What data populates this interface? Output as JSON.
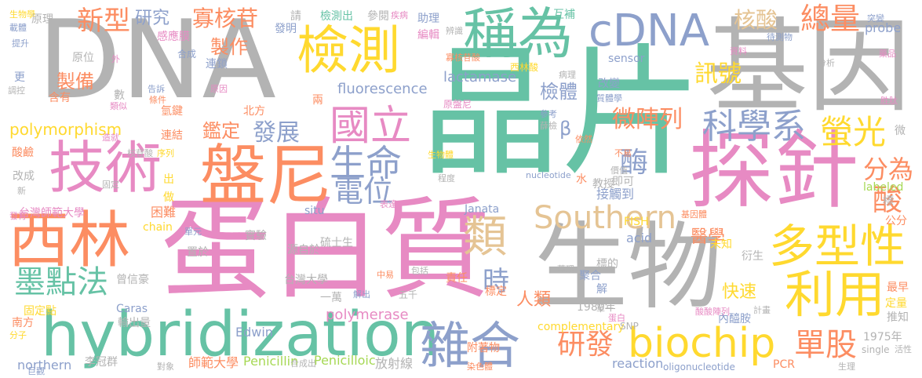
{
  "palette": {
    "green": "#66c2a5",
    "orange": "#fc8d62",
    "blue": "#8da0cb",
    "pink": "#e78ac3",
    "lime": "#a6d854",
    "yellow": "#ffd92f",
    "tan": "#e5c494",
    "gray": "#b3b3b3"
  },
  "words": [
    {
      "text": "DNA",
      "color": "#b3b3b3"
    },
    {
      "text": "晶片",
      "color": "#66c2a5"
    },
    {
      "text": "基因",
      "color": "#b3b3b3"
    },
    {
      "text": "蛋白質",
      "color": "#e78ac3"
    },
    {
      "text": "生物",
      "color": "#b3b3b3"
    },
    {
      "text": "hybridization",
      "color": "#66c2a5"
    },
    {
      "text": "探針",
      "color": "#e78ac3"
    },
    {
      "text": "技術",
      "color": "#e78ac3"
    },
    {
      "text": "盤尼",
      "color": "#fc8d62"
    },
    {
      "text": "西林",
      "color": "#fc8d62"
    },
    {
      "text": "檢測",
      "color": "#ffd92f"
    },
    {
      "text": "稱為",
      "color": "#66c2a5"
    },
    {
      "text": "cDNA",
      "color": "#8da0cb"
    },
    {
      "text": "多型性",
      "color": "#ffd92f"
    },
    {
      "text": "利用",
      "color": "#ffd92f"
    },
    {
      "text": "雜合",
      "color": "#8da0cb"
    },
    {
      "text": "biochip",
      "color": "#ffd92f"
    },
    {
      "text": "Southern",
      "color": "#e5c494"
    },
    {
      "text": "國立",
      "color": "#e78ac3"
    },
    {
      "text": "生命",
      "color": "#8da0cb"
    },
    {
      "text": "科學系",
      "color": "#8da0cb"
    },
    {
      "text": "墨點法",
      "color": "#66c2a5"
    },
    {
      "text": "類",
      "color": "#e5c494"
    },
    {
      "text": "電位",
      "color": "#8da0cb"
    },
    {
      "text": "寡核苷",
      "color": "#fc8d62"
    },
    {
      "text": "總量",
      "color": "#fc8d62"
    },
    {
      "text": "螢光",
      "color": "#ffd92f"
    },
    {
      "text": "研發",
      "color": "#fc8d62"
    },
    {
      "text": "單股",
      "color": "#fc8d62"
    },
    {
      "text": "新型",
      "color": "#fc8d62"
    },
    {
      "text": "訊號",
      "color": "#ffd92f"
    },
    {
      "text": "發展",
      "color": "#8da0cb"
    },
    {
      "text": "微陣列",
      "color": "#fc8d62"
    },
    {
      "text": "酶",
      "color": "#8da0cb"
    },
    {
      "text": "核酸",
      "color": "#e5c494"
    },
    {
      "text": "分為",
      "color": "#fc8d62"
    },
    {
      "text": "酸",
      "color": "#fc8d62"
    },
    {
      "text": "時",
      "color": "#8da0cb"
    },
    {
      "text": "製作",
      "color": "#fc8d62"
    },
    {
      "text": "製備",
      "color": "#fc8d62"
    },
    {
      "text": "鑑定",
      "color": "#fc8d62"
    },
    {
      "text": "檢體",
      "color": "#8da0cb"
    },
    {
      "text": "研究",
      "color": "#8da0cb"
    },
    {
      "text": "polymorphism",
      "color": "#ffd92f"
    },
    {
      "text": "醫學",
      "color": "#fc8d62"
    },
    {
      "text": "人類",
      "color": "#fc8d62"
    },
    {
      "text": "快速",
      "color": "#ffd92f"
    },
    {
      "text": "接觸到",
      "color": "#8da0cb"
    },
    {
      "text": "lactamase",
      "color": "#8da0cb"
    },
    {
      "text": "fluorescence",
      "color": "#8da0cb"
    },
    {
      "text": "polymerase",
      "color": "#e78ac3"
    },
    {
      "text": "Penicillin",
      "color": "#a6d854"
    },
    {
      "text": "Penicilloic",
      "color": "#a6d854"
    },
    {
      "text": "Edwin",
      "color": "#8da0cb"
    },
    {
      "text": "northern",
      "color": "#8da0cb"
    },
    {
      "text": "reaction",
      "color": "#8da0cb"
    },
    {
      "text": "complementary",
      "color": "#ffd92f"
    },
    {
      "text": "oligonucleotide",
      "color": "#8da0cb"
    },
    {
      "text": "acid",
      "color": "#8da0cb"
    },
    {
      "text": "labeled",
      "color": "#a6d854"
    },
    {
      "text": "sensor",
      "color": "#8da0cb"
    },
    {
      "text": "probe",
      "color": "#8da0cb"
    },
    {
      "text": "Janata",
      "color": "#8da0cb"
    },
    {
      "text": "FISH",
      "color": "#ffd92f"
    },
    {
      "text": "Caras",
      "color": "#8da0cb"
    },
    {
      "text": "chain",
      "color": "#ffd92f"
    },
    {
      "text": "situ",
      "color": "#8da0cb"
    },
    {
      "text": "SNP",
      "color": "#b3b3b3"
    },
    {
      "text": "PCR",
      "color": "#fc8d62"
    },
    {
      "text": "single",
      "color": "#b3b3b3"
    },
    {
      "text": "nucleotide",
      "color": "#8da0cb"
    },
    {
      "text": "1980年",
      "color": "#b3b3b3"
    },
    {
      "text": "1975年",
      "color": "#b3b3b3"
    },
    {
      "text": "台灣師範大學",
      "color": "#e78ac3"
    },
    {
      "text": "台灣大學",
      "color": "#b3b3b3"
    },
    {
      "text": "師範大學",
      "color": "#fc8d62"
    },
    {
      "text": "李冠群",
      "color": "#b3b3b3"
    },
    {
      "text": "曾信豪",
      "color": "#b3b3b3"
    },
    {
      "text": "固定點",
      "color": "#ffd92f"
    },
    {
      "text": "輸出量",
      "color": "#b3b3b3"
    },
    {
      "text": "南方",
      "color": "#fc8d62"
    },
    {
      "text": "北方",
      "color": "#fc8d62"
    },
    {
      "text": "困難",
      "color": "#fc8d62"
    },
    {
      "text": "放射線",
      "color": "#b3b3b3"
    },
    {
      "text": "一萬",
      "color": "#b3b3b3"
    },
    {
      "text": "源自於",
      "color": "#b3b3b3"
    },
    {
      "text": "硫士生",
      "color": "#b3b3b3"
    },
    {
      "text": "實驗",
      "color": "#b3b3b3"
    },
    {
      "text": "置於",
      "color": "#b3b3b3"
    },
    {
      "text": "內醯胺",
      "color": "#8da0cb"
    },
    {
      "text": "定量",
      "color": "#ffd92f"
    },
    {
      "text": "推知",
      "color": "#b3b3b3"
    },
    {
      "text": "最早",
      "color": "#fc8d62"
    },
    {
      "text": "衍生",
      "color": "#b3b3b3"
    },
    {
      "text": "未知",
      "color": "#ffd92f"
    },
    {
      "text": "標的",
      "color": "#b3b3b3"
    },
    {
      "text": "聚合",
      "color": "#8da0cb"
    },
    {
      "text": "責任",
      "color": "#fc8d62"
    },
    {
      "text": "附著物",
      "color": "#fc8d62"
    },
    {
      "text": "標定",
      "color": "#fc8d62"
    },
    {
      "text": "五千",
      "color": "#b3b3b3"
    },
    {
      "text": "教授",
      "color": "#b3b3b3"
    },
    {
      "text": "即可",
      "color": "#b3b3b3"
    },
    {
      "text": "改成",
      "color": "#b3b3b3"
    },
    {
      "text": "酸鹼",
      "color": "#fc8d62"
    },
    {
      "text": "連結",
      "color": "#fc8d62"
    },
    {
      "text": "氫鍵",
      "color": "#fc8d62"
    },
    {
      "text": "感應膜",
      "color": "#e78ac3"
    },
    {
      "text": "連鎖",
      "color": "#8da0cb"
    },
    {
      "text": "發明",
      "color": "#8da0cb"
    },
    {
      "text": "原理",
      "color": "#b3b3b3"
    },
    {
      "text": "參閱",
      "color": "#b3b3b3"
    },
    {
      "text": "助理",
      "color": "#8da0cb"
    },
    {
      "text": "互補",
      "color": "#66c2a5"
    },
    {
      "text": "編輯",
      "color": "#e78ac3"
    },
    {
      "text": "合成",
      "color": "#8da0cb"
    },
    {
      "text": "含有",
      "color": "#fc8d62"
    },
    {
      "text": "更",
      "color": "#8da0cb"
    },
    {
      "text": "數",
      "color": "#b3b3b3"
    },
    {
      "text": "兩",
      "color": "#fc8d62"
    },
    {
      "text": "水",
      "color": "#fc8d62"
    },
    {
      "text": "β",
      "color": "#8da0cb"
    },
    {
      "text": "原盤尼",
      "color": "#e78ac3"
    },
    {
      "text": "西林酸",
      "color": "#ffd92f"
    },
    {
      "text": "寡核苷酸",
      "color": "#fc8d62"
    },
    {
      "text": "待測物",
      "color": "#8da0cb"
    },
    {
      "text": "檢測出",
      "color": "#66c2a5"
    },
    {
      "text": "生物體",
      "color": "#ffd92f"
    },
    {
      "text": "生物學",
      "color": "#ffd92f"
    },
    {
      "text": "程度",
      "color": "#b3b3b3"
    },
    {
      "text": "價值",
      "color": "#b3b3b3"
    },
    {
      "text": "不易",
      "color": "#fc8d62"
    },
    {
      "text": "依然",
      "color": "#fc8d62"
    },
    {
      "text": "藥理",
      "color": "#b3b3b3"
    },
    {
      "text": "藥品",
      "color": "#e78ac3"
    },
    {
      "text": "解",
      "color": "#8da0cb"
    },
    {
      "text": "單一",
      "color": "#b3b3b3"
    },
    {
      "text": "蛋白",
      "color": "#e78ac3"
    },
    {
      "text": "染色體",
      "color": "#fc8d62"
    },
    {
      "text": "基因體",
      "color": "#fc8d62"
    },
    {
      "text": "改變",
      "color": "#8da0cb"
    },
    {
      "text": "生理",
      "color": "#b3b3b3"
    },
    {
      "text": "新",
      "color": "#b3b3b3"
    },
    {
      "text": "發育",
      "color": "#e78ac3"
    },
    {
      "text": "原位",
      "color": "#b3b3b3"
    },
    {
      "text": "原因",
      "color": "#e78ac3"
    },
    {
      "text": "告訴",
      "color": "#8da0cb"
    },
    {
      "text": "條件",
      "color": "#fc8d62"
    },
    {
      "text": "類似",
      "color": "#e78ac3"
    },
    {
      "text": "造就",
      "color": "#e78ac3"
    },
    {
      "text": "序列",
      "color": "#ffd92f"
    },
    {
      "text": "固定",
      "color": "#b3b3b3"
    },
    {
      "text": "單元",
      "color": "#8da0cb"
    },
    {
      "text": "表達",
      "color": "#e78ac3"
    },
    {
      "text": "中易",
      "color": "#fc8d62"
    },
    {
      "text": "包括",
      "color": "#b3b3b3"
    },
    {
      "text": "解出",
      "color": "#8da0cb"
    },
    {
      "text": "分析",
      "color": "#b3b3b3"
    },
    {
      "text": "胜肽",
      "color": "#e78ac3"
    },
    {
      "text": "突變",
      "color": "#8da0cb"
    },
    {
      "text": "資料",
      "color": "#e78ac3"
    },
    {
      "text": "活性",
      "color": "#b3b3b3"
    },
    {
      "text": "計畫",
      "color": "#b3b3b3"
    },
    {
      "text": "疾病",
      "color": "#e78ac3"
    },
    {
      "text": "辨識",
      "color": "#b3b3b3"
    },
    {
      "text": "請",
      "color": "#b3b3b3"
    },
    {
      "text": "提升",
      "color": "#8da0cb"
    },
    {
      "text": "調控",
      "color": "#b3b3b3"
    },
    {
      "text": "載體",
      "color": "#8da0cb"
    },
    {
      "text": "分子",
      "color": "#ffd92f"
    },
    {
      "text": "巨觀",
      "color": "#8da0cb"
    },
    {
      "text": "對象",
      "color": "#b3b3b3"
    },
    {
      "text": "合成出",
      "color": "#b3b3b3"
    },
    {
      "text": "公分",
      "color": "#fc8d62"
    },
    {
      "text": "標",
      "color": "#b3b3b3"
    },
    {
      "text": "微",
      "color": "#b3b3b3"
    },
    {
      "text": "出",
      "color": "#ffd92f"
    },
    {
      "text": "做",
      "color": "#ffd92f"
    },
    {
      "text": "參考",
      "color": "#8da0cb"
    },
    {
      "text": "薛檢",
      "color": "#b3b3b3"
    },
    {
      "text": "核苷酸",
      "color": "#b3b3b3"
    },
    {
      "text": "病理",
      "color": "#b3b3b3"
    },
    {
      "text": "質體學",
      "color": "#8da0cb"
    },
    {
      "text": "酸酸陣列",
      "color": "#e78ac3"
    },
    {
      "text": "外",
      "color": "#e78ac3"
    }
  ]
}
